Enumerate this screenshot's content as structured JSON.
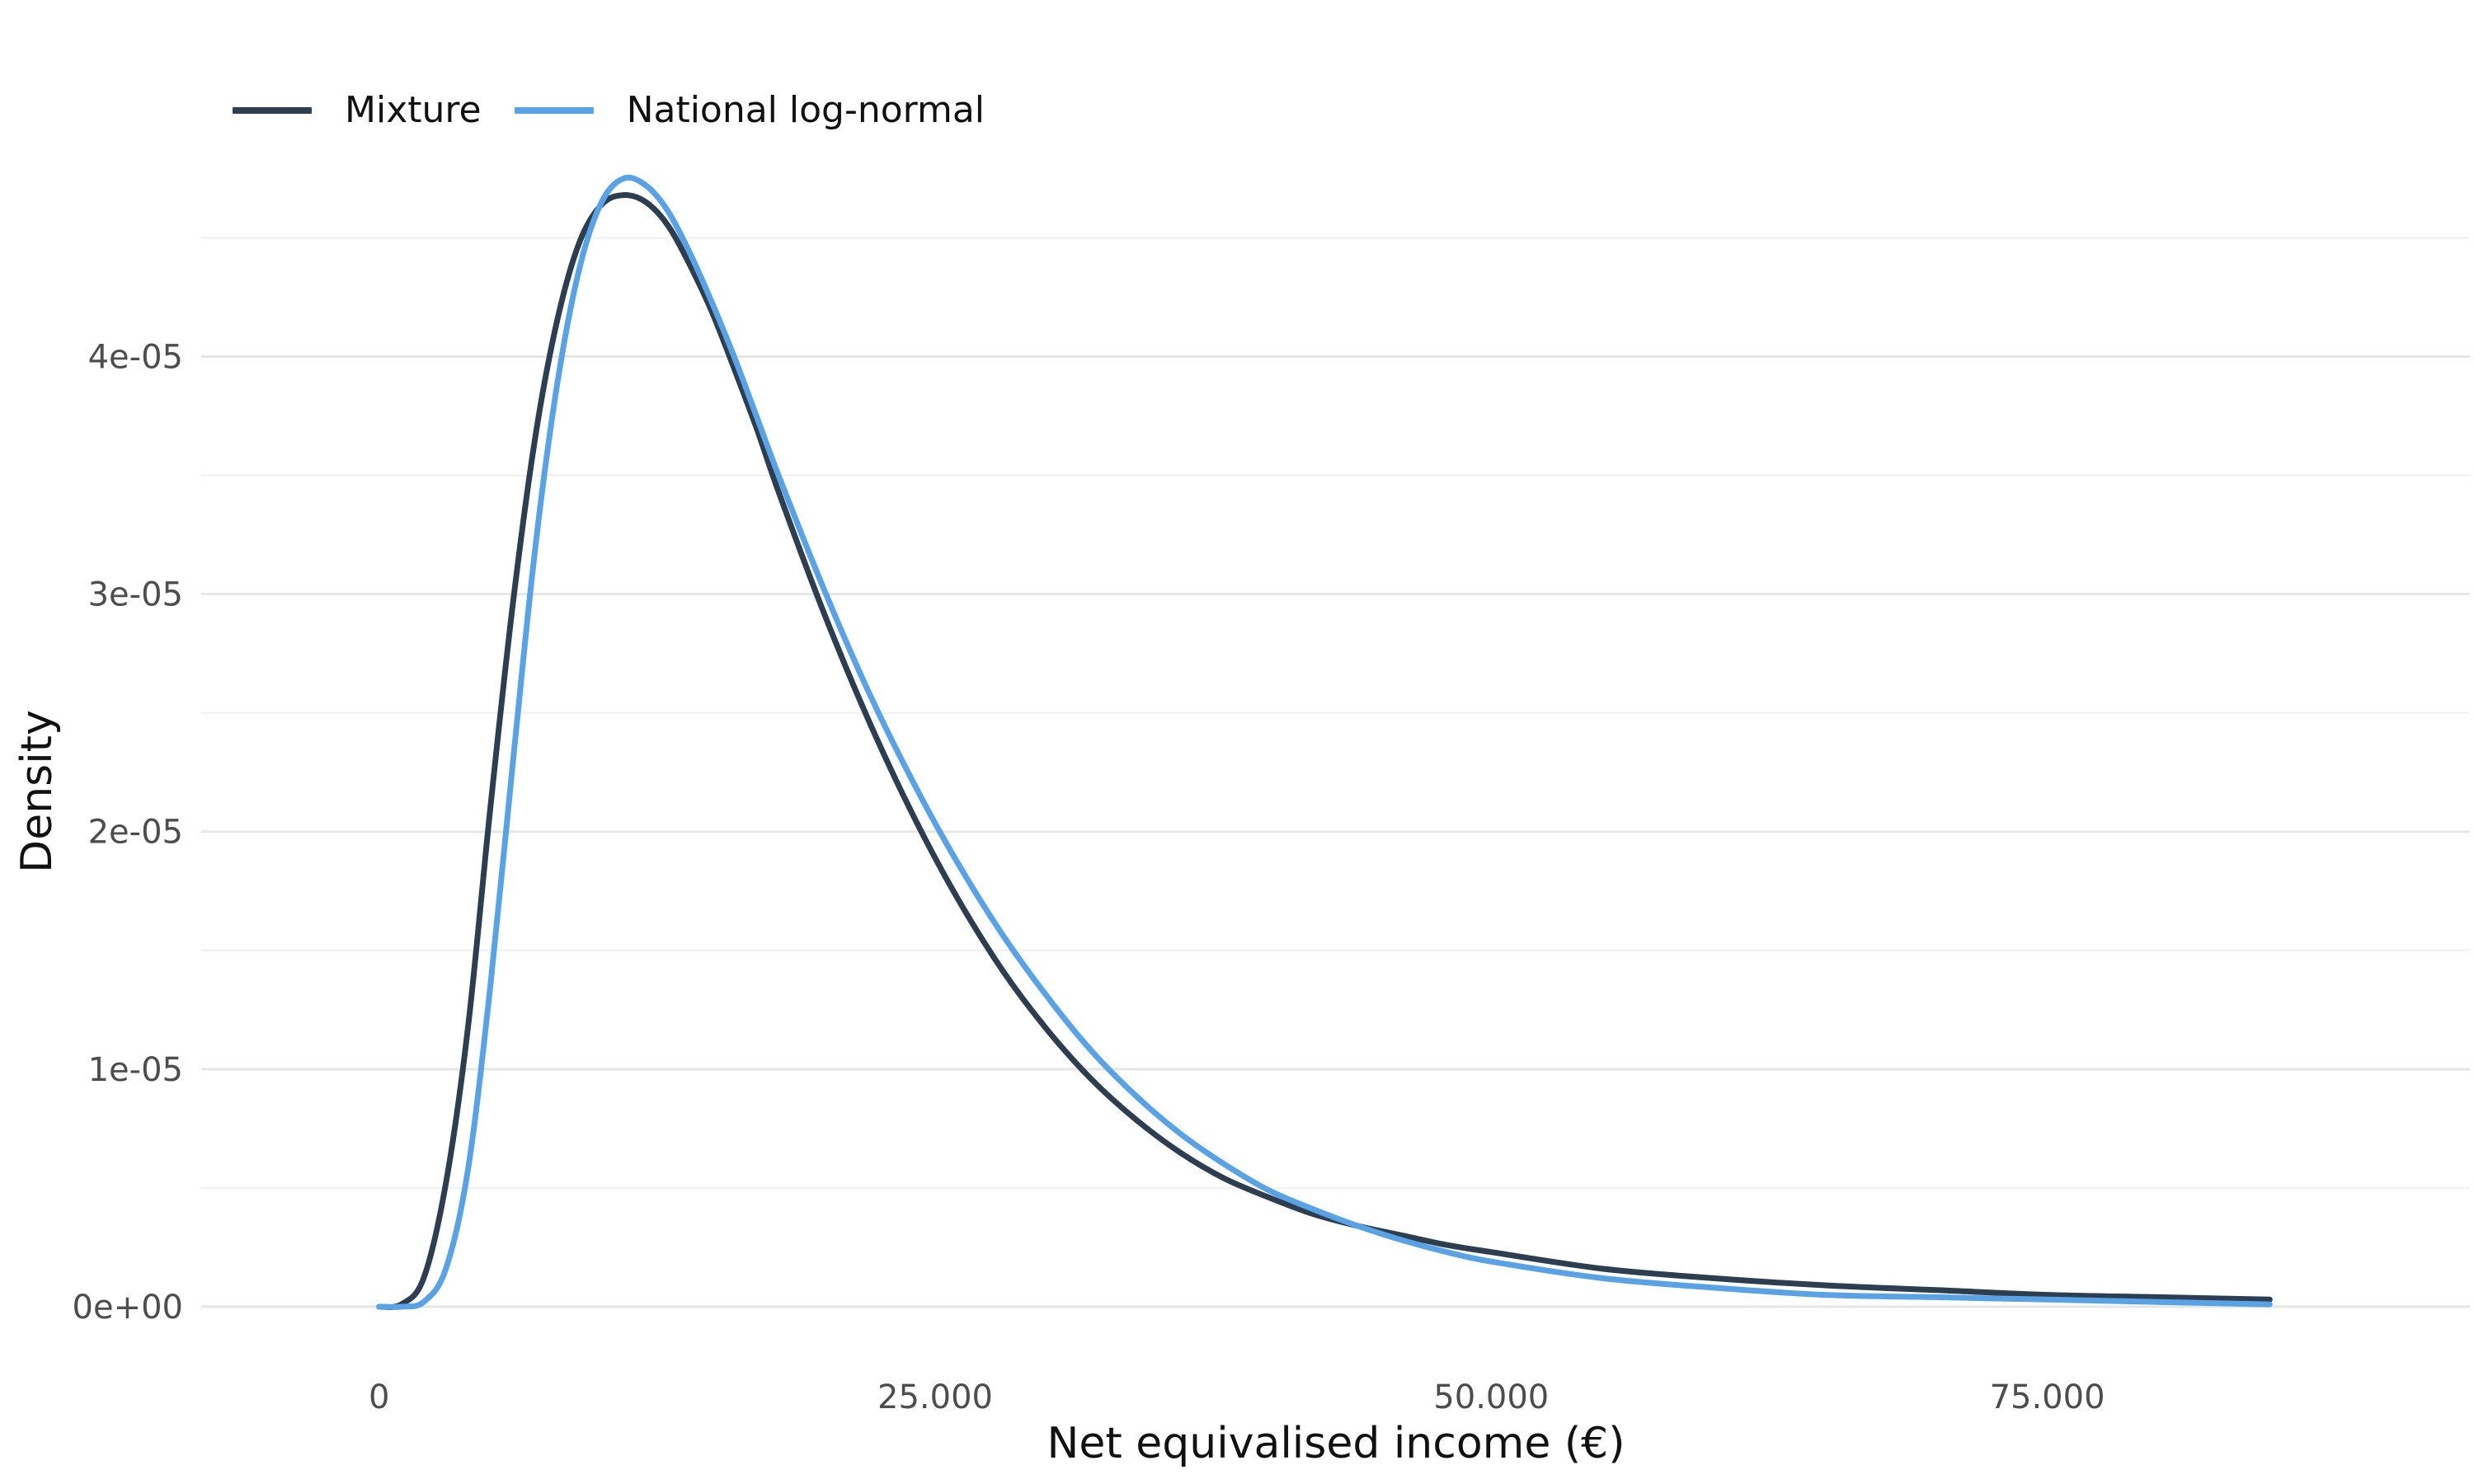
{
  "chart_data": {
    "type": "line",
    "title": "",
    "xlabel": "Net equivalised income (€)",
    "ylabel": "Density",
    "xlim": [
      -8000,
      94000
    ],
    "ylim": [
      -2.5e-06,
      5.05e-05
    ],
    "x_ticks": [
      {
        "value": 0,
        "label": "0"
      },
      {
        "value": 25000,
        "label": "25.000"
      },
      {
        "value": 50000,
        "label": "50.000"
      },
      {
        "value": 75000,
        "label": "75.000"
      }
    ],
    "y_ticks": [
      {
        "value": 0,
        "label": "0e+00"
      },
      {
        "value": 1e-05,
        "label": "1e-05"
      },
      {
        "value": 2e-05,
        "label": "2e-05"
      },
      {
        "value": 3e-05,
        "label": "3e-05"
      },
      {
        "value": 4e-05,
        "label": "4e-05"
      }
    ],
    "y_minor_ticks": [
      5e-06,
      1.5e-05,
      2.5e-05,
      3.5e-05,
      4.5e-05
    ],
    "grid": true,
    "legend_position": "top-left",
    "series": [
      {
        "name": "Mixture",
        "color": "#2c3e50",
        "x": [
          0,
          1000,
          2000,
          3000,
          4000,
          5000,
          6000,
          7000,
          8000,
          9000,
          10000,
          11000,
          12000,
          13000,
          14000,
          15000,
          16000,
          17000,
          18000,
          20000,
          22000,
          24000,
          26000,
          28000,
          30000,
          32000,
          34000,
          36000,
          38000,
          40000,
          42000,
          44000,
          46000,
          48000,
          50000,
          55000,
          60000,
          65000,
          70000,
          75000,
          80000,
          85000
        ],
        "y": [
          0,
          1e-07,
          1.2e-06,
          5.2e-06,
          1.18e-05,
          2.1e-05,
          2.95e-05,
          3.65e-05,
          4.15e-05,
          4.48e-05,
          4.64e-05,
          4.68e-05,
          4.65e-05,
          4.55e-05,
          4.38e-05,
          4.18e-05,
          3.94e-05,
          3.69e-05,
          3.42e-05,
          2.92e-05,
          2.47e-05,
          2.07e-05,
          1.72e-05,
          1.42e-05,
          1.17e-05,
          9.6e-06,
          7.9e-06,
          6.5e-06,
          5.4e-06,
          4.6e-06,
          3.9e-06,
          3.4e-06,
          3e-06,
          2.6e-06,
          2.3e-06,
          1.6e-06,
          1.2e-06,
          9e-07,
          7e-07,
          5e-07,
          4e-07,
          3e-07
        ]
      },
      {
        "name": "National log-normal",
        "color": "#5aa2e6",
        "x": [
          0,
          1000,
          2000,
          3000,
          4000,
          5000,
          6000,
          7000,
          8000,
          9000,
          10000,
          11000,
          12000,
          13000,
          14000,
          15000,
          16000,
          17000,
          18000,
          20000,
          22000,
          24000,
          26000,
          28000,
          30000,
          32000,
          34000,
          36000,
          38000,
          40000,
          42000,
          44000,
          46000,
          48000,
          50000,
          55000,
          60000,
          65000,
          70000,
          75000,
          80000,
          85000
        ],
        "y": [
          0,
          0,
          2e-07,
          1.6e-06,
          5.8e-06,
          1.35e-05,
          2.28e-05,
          3.18e-05,
          3.88e-05,
          4.37e-05,
          4.65e-05,
          4.75e-05,
          4.72e-05,
          4.61e-05,
          4.43e-05,
          4.22e-05,
          3.99e-05,
          3.74e-05,
          3.49e-05,
          3.02e-05,
          2.59e-05,
          2.21e-05,
          1.87e-05,
          1.57e-05,
          1.31e-05,
          1.08e-05,
          8.9e-06,
          7.3e-06,
          6e-06,
          4.9e-06,
          4.1e-06,
          3.4e-06,
          2.8e-06,
          2.3e-06,
          1.9e-06,
          1.2e-06,
          8e-07,
          5e-07,
          4e-07,
          3e-07,
          2e-07,
          1e-07
        ]
      }
    ]
  }
}
